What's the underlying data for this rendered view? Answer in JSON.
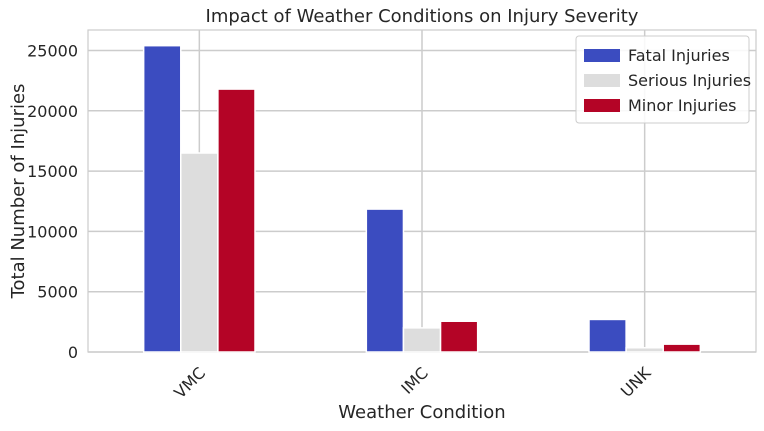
{
  "chart_data": {
    "type": "bar",
    "title": "Impact of Weather Conditions on Injury Severity",
    "xlabel": "Weather Condition",
    "ylabel": "Total Number of Injuries",
    "categories": [
      "VMC",
      "IMC",
      "UNK"
    ],
    "series": [
      {
        "name": "Fatal Injuries",
        "color": "#3b4cc0",
        "values": [
          25400,
          11850,
          2700
        ]
      },
      {
        "name": "Serious Injuries",
        "color": "#dddddd",
        "values": [
          16500,
          2000,
          350
        ]
      },
      {
        "name": "Minor Injuries",
        "color": "#b40426",
        "values": [
          21800,
          2550,
          650
        ]
      }
    ],
    "ylim": [
      0,
      26700
    ],
    "yticks": [
      0,
      5000,
      10000,
      15000,
      20000,
      25000
    ],
    "grid": true,
    "legend_position": "top-right"
  }
}
